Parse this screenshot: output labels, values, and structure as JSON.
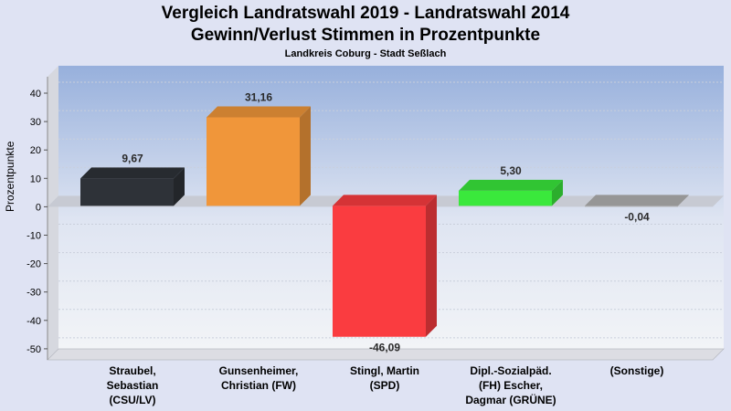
{
  "chart_data": {
    "type": "bar",
    "title": "Vergleich Landratswahl 2019 - Landratswahl 2014",
    "subtitle": "Gewinn/Verlust Stimmen in Prozentpunkte",
    "region": "Landkreis Coburg - Stadt Seßlach",
    "ylabel": "Prozentpunkte",
    "ylim": [
      -55,
      45
    ],
    "yticks": [
      40,
      30,
      20,
      10,
      0,
      -10,
      -20,
      -30,
      -40,
      -50
    ],
    "categories": [
      [
        "Straubel,",
        "Sebastian",
        "(CSU/LV)"
      ],
      [
        "Gunsenheimer,",
        "Christian (FW)"
      ],
      [
        "Stingl, Martin",
        "(SPD)"
      ],
      [
        "Dipl.-Sozialpäd.",
        "(FH) Escher,",
        "Dagmar (GRÜNE)"
      ],
      [
        "(Sonstige)"
      ]
    ],
    "values": [
      9.67,
      31.16,
      -46.09,
      5.3,
      -0.04
    ],
    "value_labels": [
      "9,67",
      "31,16",
      "-46,09",
      "5,30",
      "-0,04"
    ],
    "colors": [
      "#2e3238",
      "#f0963a",
      "#fa3c40",
      "#3ae83c",
      "#b0b0b0"
    ],
    "grid": true,
    "legend": "none"
  }
}
